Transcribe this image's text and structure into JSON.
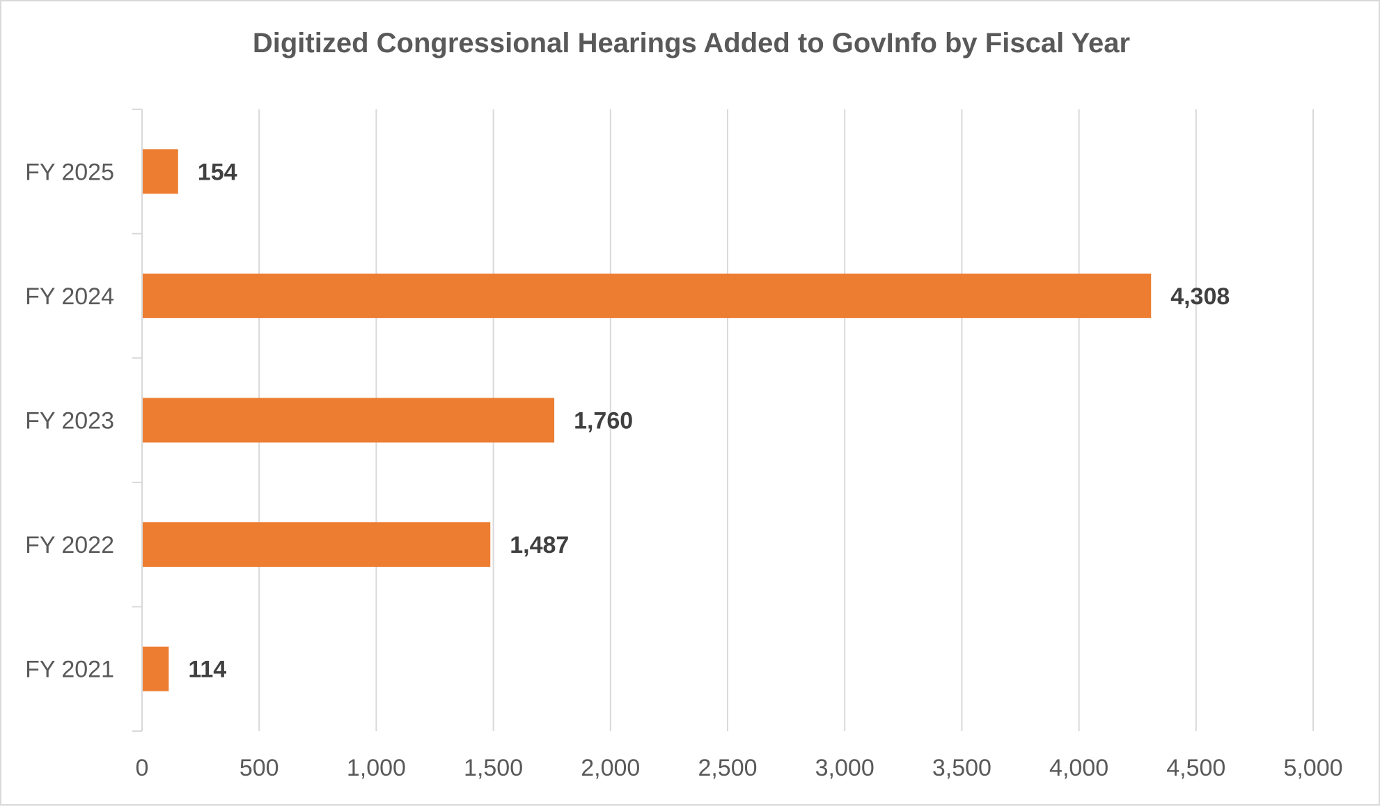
{
  "chart_data": {
    "type": "bar",
    "orientation": "horizontal",
    "title": "Digitized Congressional Hearings Added to GovInfo by Fiscal Year",
    "categories": [
      "FY 2025",
      "FY 2024",
      "FY 2023",
      "FY 2022",
      "FY 2021"
    ],
    "values": [
      154,
      4308,
      1760,
      1487,
      114
    ],
    "data_labels": [
      "154",
      "4,308",
      "1,760",
      "1,487",
      "114"
    ],
    "xlim": [
      0,
      5000
    ],
    "x_ticks": [
      0,
      500,
      1000,
      1500,
      2000,
      2500,
      3000,
      3500,
      4000,
      4500,
      5000
    ],
    "x_tick_labels": [
      "0",
      "500",
      "1,000",
      "1,500",
      "2,000",
      "2,500",
      "3,000",
      "3,500",
      "4,000",
      "4,500",
      "5,000"
    ],
    "xlabel": "",
    "ylabel": "",
    "grid": "vertical",
    "legend": "none",
    "bar_color": "#ED7D31",
    "grid_color": "#d9d9d9",
    "text_color": "#595959",
    "label_color": "#404040"
  }
}
